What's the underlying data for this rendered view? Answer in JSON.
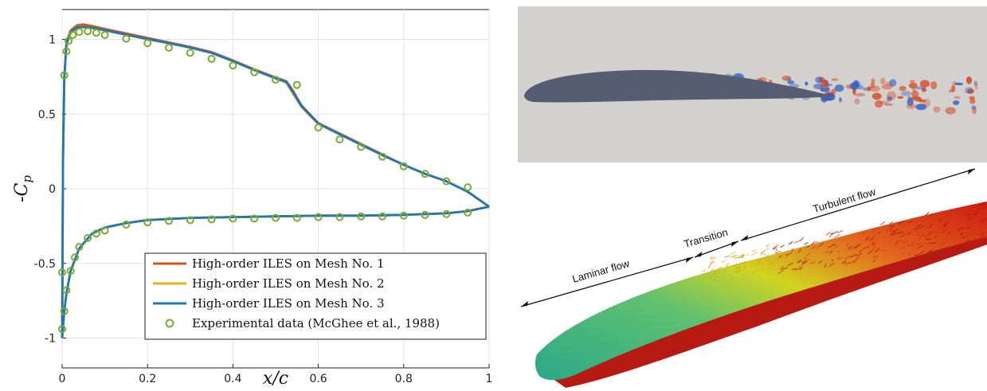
{
  "chart_data": {
    "type": "scatter",
    "xlabel": "x/c",
    "ylabel": "-C_p",
    "xlim": [
      0,
      1
    ],
    "ylim": [
      -1.2,
      1.2
    ],
    "xticks": [
      "0",
      "0.2",
      "0.4",
      "0.6",
      "0.8",
      "1"
    ],
    "yticks": [
      "-1",
      "-0.5",
      "0",
      "0.5",
      "1"
    ],
    "grid": true,
    "legend_position": "bottom-right",
    "series": [
      {
        "name": "High-order ILES on Mesh No. 1",
        "color": "#d95319",
        "style": "line",
        "upper": [
          [
            0,
            -1.0
          ],
          [
            0.002,
            0.2
          ],
          [
            0.005,
            0.75
          ],
          [
            0.01,
            0.98
          ],
          [
            0.02,
            1.06
          ],
          [
            0.035,
            1.095
          ],
          [
            0.05,
            1.1
          ],
          [
            0.07,
            1.09
          ],
          [
            0.1,
            1.07
          ],
          [
            0.15,
            1.04
          ],
          [
            0.2,
            1.01
          ],
          [
            0.25,
            0.98
          ],
          [
            0.3,
            0.95
          ],
          [
            0.35,
            0.915
          ],
          [
            0.4,
            0.86
          ],
          [
            0.45,
            0.8
          ],
          [
            0.5,
            0.745
          ],
          [
            0.525,
            0.72
          ],
          [
            0.54,
            0.66
          ],
          [
            0.56,
            0.56
          ],
          [
            0.58,
            0.5
          ],
          [
            0.6,
            0.44
          ],
          [
            0.65,
            0.37
          ],
          [
            0.7,
            0.3
          ],
          [
            0.75,
            0.23
          ],
          [
            0.8,
            0.16
          ],
          [
            0.85,
            0.1
          ],
          [
            0.9,
            0.05
          ],
          [
            0.95,
            -0.02
          ],
          [
            1,
            -0.12
          ]
        ],
        "lower": [
          [
            0,
            -1.0
          ],
          [
            0.005,
            -0.82
          ],
          [
            0.01,
            -0.7
          ],
          [
            0.02,
            -0.55
          ],
          [
            0.04,
            -0.4
          ],
          [
            0.07,
            -0.3
          ],
          [
            0.1,
            -0.26
          ],
          [
            0.15,
            -0.23
          ],
          [
            0.2,
            -0.21
          ],
          [
            0.3,
            -0.195
          ],
          [
            0.4,
            -0.19
          ],
          [
            0.5,
            -0.185
          ],
          [
            0.6,
            -0.18
          ],
          [
            0.7,
            -0.18
          ],
          [
            0.8,
            -0.175
          ],
          [
            0.9,
            -0.165
          ],
          [
            0.95,
            -0.15
          ],
          [
            1,
            -0.12
          ]
        ]
      },
      {
        "name": "High-order ILES on Mesh No. 2",
        "color": "#edb120",
        "style": "line",
        "upper": [
          [
            0,
            -1.0
          ],
          [
            0.002,
            0.2
          ],
          [
            0.005,
            0.74
          ],
          [
            0.01,
            0.96
          ],
          [
            0.02,
            1.04
          ],
          [
            0.035,
            1.075
          ],
          [
            0.05,
            1.08
          ],
          [
            0.07,
            1.075
          ],
          [
            0.1,
            1.06
          ],
          [
            0.15,
            1.03
          ],
          [
            0.2,
            1.0
          ],
          [
            0.25,
            0.975
          ],
          [
            0.3,
            0.945
          ],
          [
            0.35,
            0.91
          ],
          [
            0.4,
            0.855
          ],
          [
            0.45,
            0.795
          ],
          [
            0.5,
            0.74
          ],
          [
            0.525,
            0.71
          ],
          [
            0.54,
            0.64
          ],
          [
            0.56,
            0.55
          ],
          [
            0.58,
            0.49
          ],
          [
            0.6,
            0.435
          ],
          [
            0.65,
            0.365
          ],
          [
            0.7,
            0.295
          ],
          [
            0.75,
            0.225
          ],
          [
            0.8,
            0.16
          ],
          [
            0.85,
            0.1
          ],
          [
            0.9,
            0.05
          ],
          [
            0.95,
            -0.02
          ],
          [
            1,
            -0.12
          ]
        ],
        "lower": [
          [
            0,
            -1.0
          ],
          [
            0.005,
            -0.82
          ],
          [
            0.01,
            -0.7
          ],
          [
            0.02,
            -0.55
          ],
          [
            0.04,
            -0.4
          ],
          [
            0.07,
            -0.3
          ],
          [
            0.1,
            -0.26
          ],
          [
            0.15,
            -0.23
          ],
          [
            0.2,
            -0.21
          ],
          [
            0.3,
            -0.195
          ],
          [
            0.4,
            -0.19
          ],
          [
            0.5,
            -0.185
          ],
          [
            0.6,
            -0.18
          ],
          [
            0.7,
            -0.18
          ],
          [
            0.8,
            -0.175
          ],
          [
            0.9,
            -0.165
          ],
          [
            0.95,
            -0.15
          ],
          [
            1,
            -0.12
          ]
        ]
      },
      {
        "name": "High-order ILES on Mesh No. 3",
        "color": "#1f77b4",
        "style": "line",
        "upper": [
          [
            0,
            -1.0
          ],
          [
            0.002,
            0.2
          ],
          [
            0.005,
            0.74
          ],
          [
            0.01,
            0.97
          ],
          [
            0.02,
            1.05
          ],
          [
            0.035,
            1.08
          ],
          [
            0.05,
            1.085
          ],
          [
            0.07,
            1.078
          ],
          [
            0.1,
            1.062
          ],
          [
            0.15,
            1.032
          ],
          [
            0.2,
            1.003
          ],
          [
            0.25,
            0.975
          ],
          [
            0.3,
            0.945
          ],
          [
            0.35,
            0.91
          ],
          [
            0.4,
            0.855
          ],
          [
            0.45,
            0.795
          ],
          [
            0.5,
            0.74
          ],
          [
            0.525,
            0.715
          ],
          [
            0.54,
            0.65
          ],
          [
            0.56,
            0.555
          ],
          [
            0.58,
            0.495
          ],
          [
            0.6,
            0.435
          ],
          [
            0.65,
            0.365
          ],
          [
            0.7,
            0.295
          ],
          [
            0.75,
            0.225
          ],
          [
            0.8,
            0.16
          ],
          [
            0.85,
            0.1
          ],
          [
            0.9,
            0.05
          ],
          [
            0.95,
            -0.02
          ],
          [
            1,
            -0.12
          ]
        ],
        "lower": [
          [
            0,
            -1.0
          ],
          [
            0.005,
            -0.82
          ],
          [
            0.01,
            -0.7
          ],
          [
            0.02,
            -0.55
          ],
          [
            0.04,
            -0.4
          ],
          [
            0.07,
            -0.3
          ],
          [
            0.1,
            -0.26
          ],
          [
            0.15,
            -0.23
          ],
          [
            0.2,
            -0.21
          ],
          [
            0.3,
            -0.195
          ],
          [
            0.4,
            -0.19
          ],
          [
            0.5,
            -0.185
          ],
          [
            0.6,
            -0.18
          ],
          [
            0.7,
            -0.18
          ],
          [
            0.8,
            -0.175
          ],
          [
            0.9,
            -0.165
          ],
          [
            0.95,
            -0.15
          ],
          [
            1,
            -0.12
          ]
        ]
      },
      {
        "name": "Experimental data (McGhee et al., 1988)",
        "color": "#77ac30",
        "style": "marker-circle",
        "points": [
          [
            0.0,
            -0.56
          ],
          [
            0.0,
            -0.94
          ],
          [
            0.005,
            0.76
          ],
          [
            0.01,
            0.92
          ],
          [
            0.015,
            0.99
          ],
          [
            0.025,
            1.03
          ],
          [
            0.04,
            1.05
          ],
          [
            0.06,
            1.055
          ],
          [
            0.08,
            1.045
          ],
          [
            0.1,
            1.03
          ],
          [
            0.15,
            1.005
          ],
          [
            0.2,
            0.975
          ],
          [
            0.25,
            0.945
          ],
          [
            0.3,
            0.91
          ],
          [
            0.35,
            0.87
          ],
          [
            0.4,
            0.825
          ],
          [
            0.45,
            0.78
          ],
          [
            0.5,
            0.73
          ],
          [
            0.55,
            0.695
          ],
          [
            0.6,
            0.41
          ],
          [
            0.65,
            0.33
          ],
          [
            0.7,
            0.28
          ],
          [
            0.75,
            0.215
          ],
          [
            0.8,
            0.15
          ],
          [
            0.85,
            0.1
          ],
          [
            0.9,
            0.05
          ],
          [
            0.95,
            0.01
          ],
          [
            0.005,
            -0.82
          ],
          [
            0.01,
            -0.68
          ],
          [
            0.02,
            -0.55
          ],
          [
            0.03,
            -0.46
          ],
          [
            0.04,
            -0.39
          ],
          [
            0.06,
            -0.33
          ],
          [
            0.08,
            -0.3
          ],
          [
            0.1,
            -0.28
          ],
          [
            0.15,
            -0.24
          ],
          [
            0.2,
            -0.225
          ],
          [
            0.25,
            -0.215
          ],
          [
            0.3,
            -0.21
          ],
          [
            0.35,
            -0.205
          ],
          [
            0.4,
            -0.2
          ],
          [
            0.45,
            -0.2
          ],
          [
            0.5,
            -0.195
          ],
          [
            0.55,
            -0.195
          ],
          [
            0.6,
            -0.19
          ],
          [
            0.65,
            -0.19
          ],
          [
            0.7,
            -0.185
          ],
          [
            0.75,
            -0.185
          ],
          [
            0.8,
            -0.18
          ],
          [
            0.85,
            -0.175
          ],
          [
            0.9,
            -0.17
          ],
          [
            0.95,
            -0.16
          ]
        ]
      }
    ]
  },
  "figure": {
    "flow_image": {
      "colors": {
        "background": "#d2d1ce",
        "airfoil": "#565c72",
        "positive": "#d84a25",
        "negative": "#2c5cc4"
      }
    },
    "iso_image": {
      "annotations": {
        "laminar": "Laminar flow",
        "transition": "Transition",
        "turbulent": "Turbulent flow"
      },
      "colors": {
        "laminar": "#2aa889",
        "transition": "#d0d420",
        "turbulent": "#cc1a10",
        "lower_surface": "#b61a12"
      }
    }
  }
}
